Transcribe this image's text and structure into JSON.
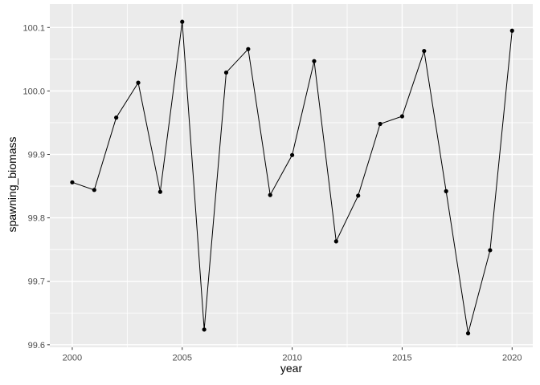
{
  "chart_data": {
    "type": "line",
    "title": "",
    "xlabel": "year",
    "ylabel": "spawning_biomass",
    "x": [
      2000,
      2001,
      2002,
      2003,
      2004,
      2005,
      2006,
      2007,
      2008,
      2009,
      2010,
      2011,
      2012,
      2013,
      2014,
      2015,
      2016,
      2017,
      2018,
      2019,
      2020
    ],
    "series": [
      {
        "name": "spawning_biomass",
        "values": [
          99.856,
          99.844,
          99.958,
          100.013,
          99.841,
          100.109,
          99.624,
          100.029,
          100.066,
          99.836,
          99.899,
          100.047,
          99.763,
          99.835,
          99.948,
          99.96,
          100.063,
          99.842,
          99.618,
          99.749,
          100.095
        ]
      }
    ],
    "xlim": [
      1998.98,
      2020.94
    ],
    "ylim": [
      99.596,
      100.137
    ],
    "x_ticks": {
      "major": [
        2000,
        2005,
        2010,
        2015,
        2020
      ],
      "labels": [
        "2000",
        "2005",
        "2010",
        "2015",
        "2020"
      ],
      "minor": [
        2002.5,
        2007.5,
        2012.5,
        2017.5
      ]
    },
    "y_ticks": {
      "major": [
        99.6,
        99.7,
        99.8,
        99.9,
        100.0,
        100.1
      ],
      "labels": [
        "99.6",
        "99.7",
        "99.8",
        "99.9",
        "100.0",
        "100.1"
      ],
      "minor": [
        99.65,
        99.75,
        99.85,
        99.95,
        100.05
      ]
    },
    "grid": "major+minor",
    "legend": "none",
    "marker": "point",
    "colors": {
      "figure_bg": "#FFFFFF",
      "panel_bg": "#EBEBEB",
      "grid": "#FFFFFF",
      "series": "#000000",
      "tick_text": "#4D4D4D",
      "tick_mark": "#333333",
      "axis_title": "#000000"
    }
  }
}
